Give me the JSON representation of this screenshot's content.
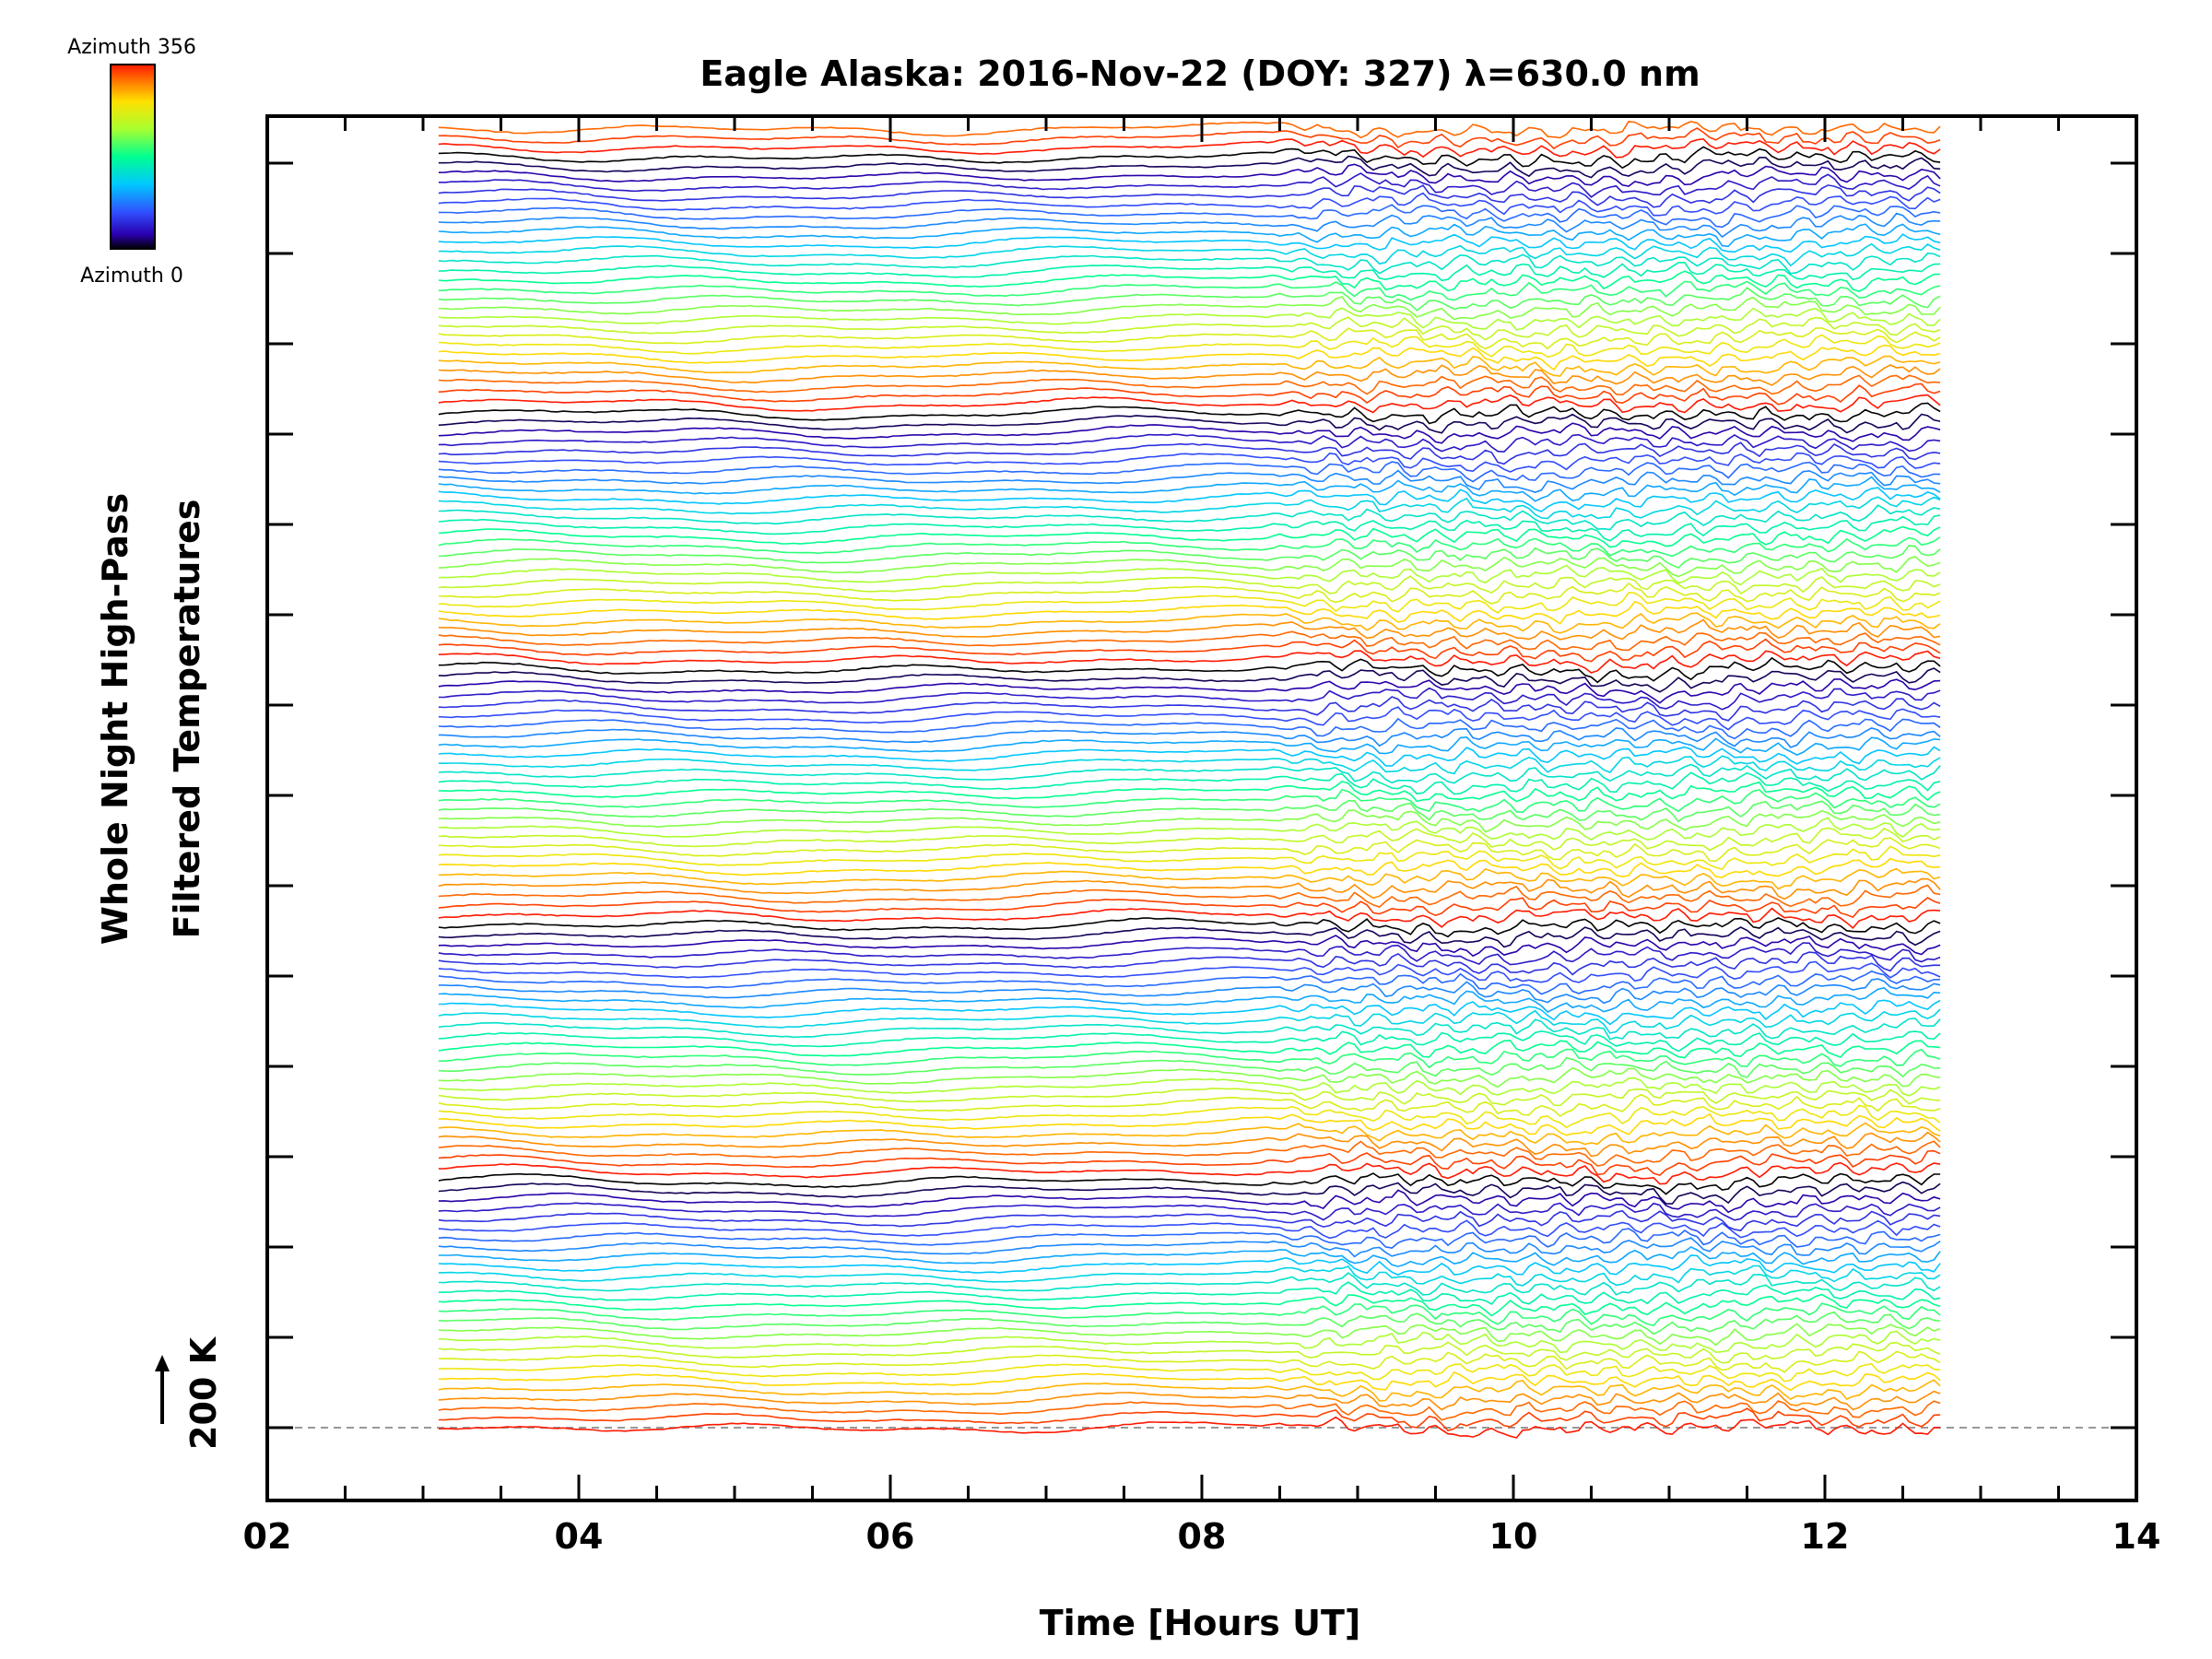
{
  "chart_data": {
    "type": "line",
    "title": "Eagle Alaska: 2016-Nov-22 (DOY: 327) λ=630.0 nm",
    "xlabel": "Time [Hours UT]",
    "ylabel_line1": "Whole Night High-Pass",
    "ylabel_line2": "Filtered Temperatures",
    "scale_label": "200 K",
    "xlim": [
      2,
      14
    ],
    "xticks": [
      "02",
      "04",
      "06",
      "08",
      "10",
      "12",
      "14"
    ],
    "data_time_range": [
      3.1,
      12.75
    ],
    "active_wave_onset_hours": 8.3,
    "grid": false,
    "colorbar": {
      "top_label": "Azimuth 356",
      "bottom_label": "Azimuth 0",
      "colormap": "rainbow"
    },
    "trace_count": 138,
    "traces_per_azimuth_cycle": 27
  },
  "colors": {
    "background": "#ffffff",
    "axis": "#000000",
    "baseline": "#999999"
  }
}
